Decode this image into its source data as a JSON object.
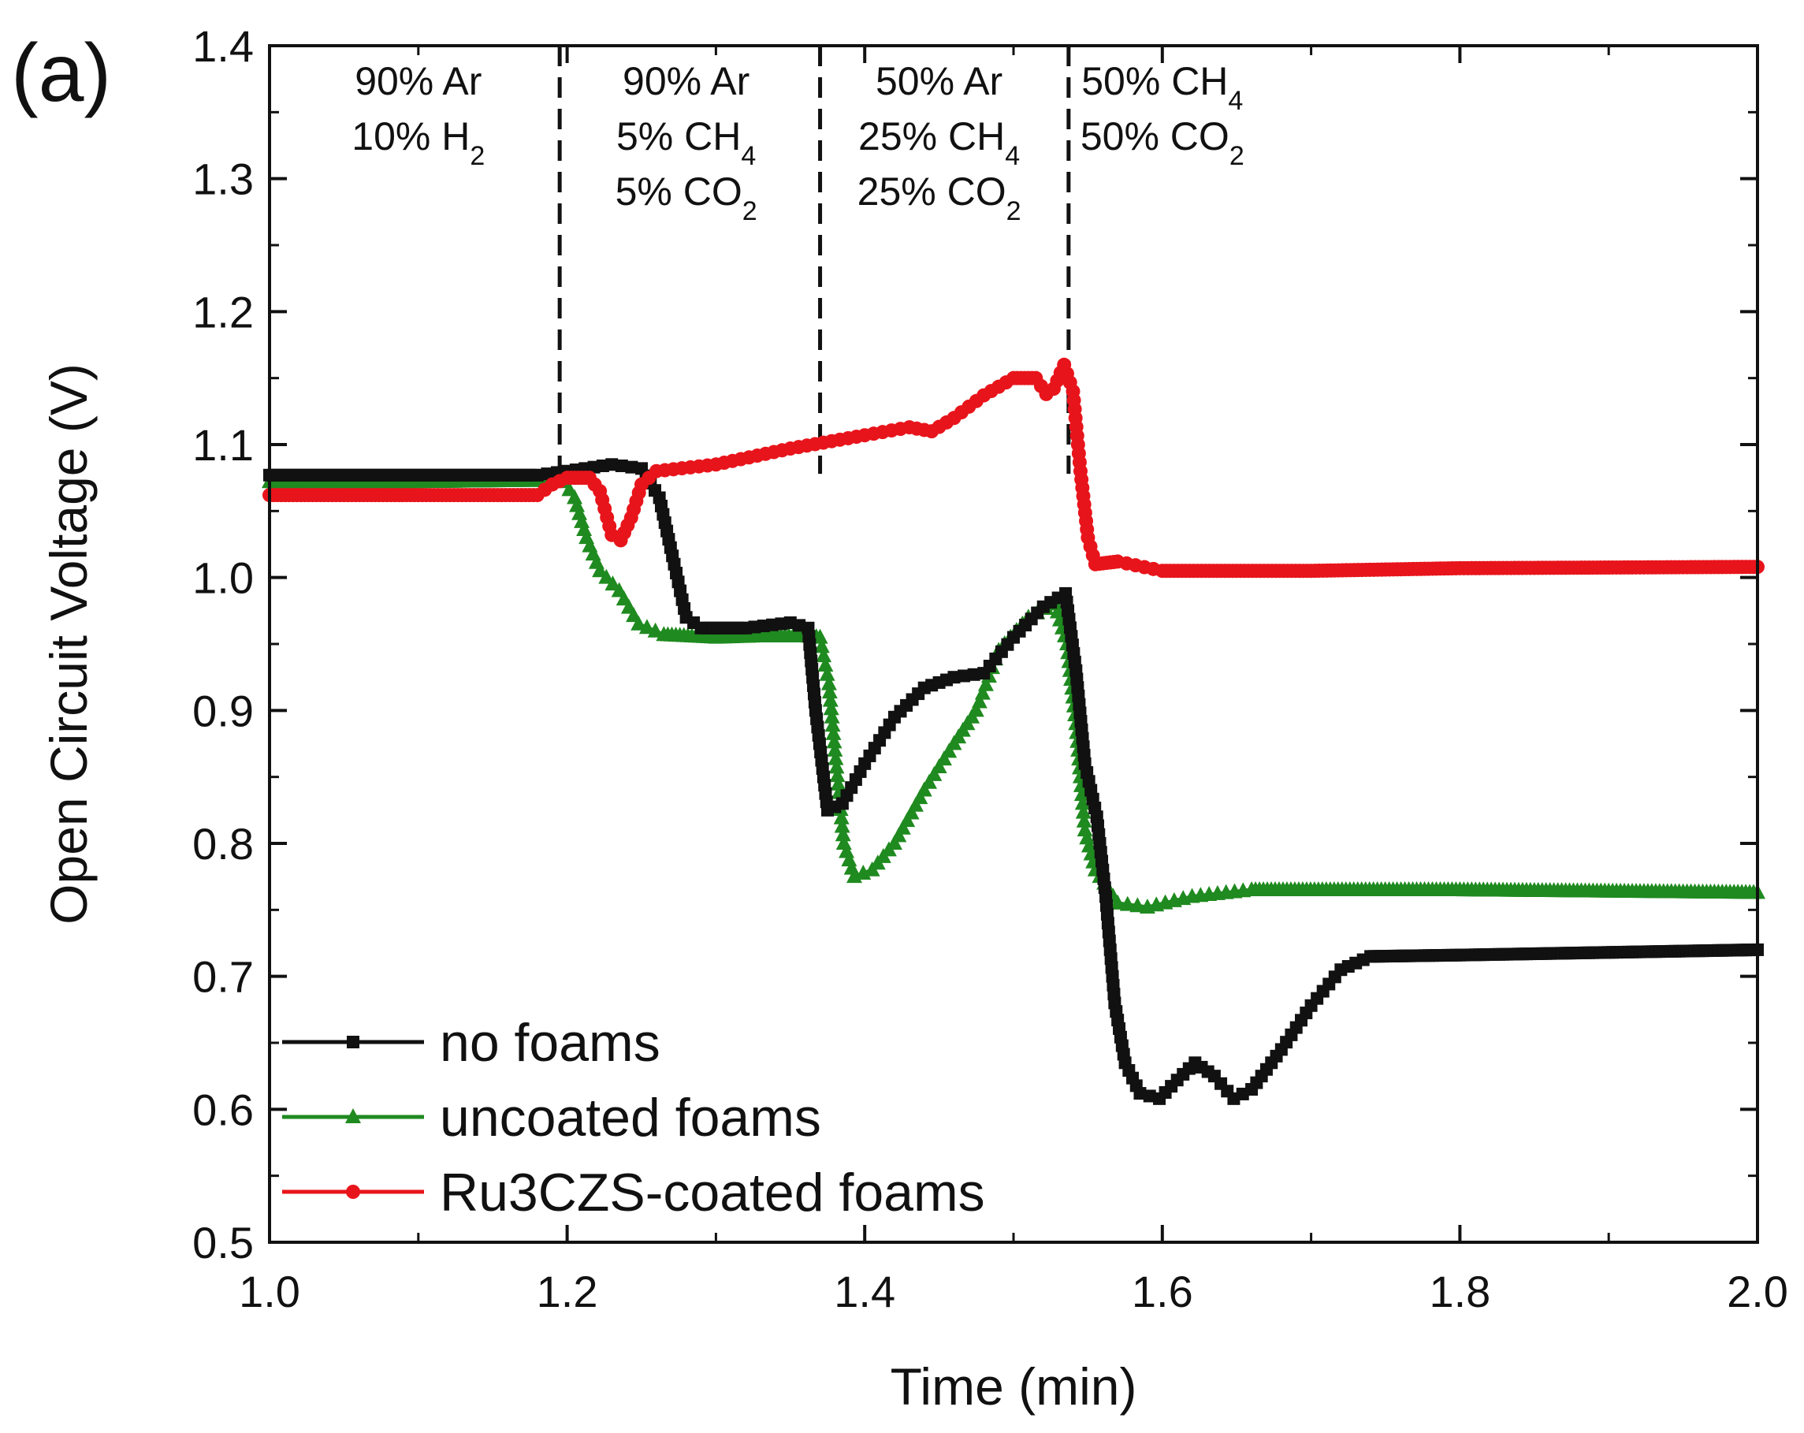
{
  "chart_data": {
    "type": "line",
    "panel_label": "(a)",
    "xlabel": "Time (min)",
    "ylabel": "Open Circuit Voltage (V)",
    "xlim": [
      1.0,
      2.0
    ],
    "ylim": [
      0.5,
      1.4
    ],
    "x_ticks": [
      1.0,
      1.2,
      1.4,
      1.6,
      1.8,
      2.0
    ],
    "x_tick_labels": [
      "1.0",
      "1.2",
      "1.4",
      "1.6",
      "1.8",
      "2.0"
    ],
    "y_ticks": [
      0.5,
      0.6,
      0.7,
      0.8,
      0.9,
      1.0,
      1.1,
      1.2,
      1.3,
      1.4
    ],
    "y_tick_labels": [
      "0.5",
      "0.6",
      "0.7",
      "0.8",
      "0.9",
      "1.0",
      "1.1",
      "1.2",
      "1.3",
      "1.4"
    ],
    "x_minor_step": 0.1,
    "y_minor_step": 0.05,
    "dividers": [
      1.195,
      1.37,
      1.537
    ],
    "regions": [
      {
        "x_center": 1.1,
        "lines": [
          {
            "text": "90% Ar"
          },
          {
            "text": "10% H",
            "sub": "2"
          }
        ]
      },
      {
        "x_center": 1.28,
        "lines": [
          {
            "text": "90% Ar"
          },
          {
            "text": "5% CH",
            "sub": "4"
          },
          {
            "text": "5% CO",
            "sub": "2"
          }
        ]
      },
      {
        "x_center": 1.45,
        "lines": [
          {
            "text": "50% Ar"
          },
          {
            "text": "25% CH",
            "sub": "4"
          },
          {
            "text": "25% CO",
            "sub": "2"
          }
        ]
      },
      {
        "x_center": 1.6,
        "lines": [
          {
            "text": "50% CH",
            "sub": "4"
          },
          {
            "text": "50% CO",
            "sub": "2"
          }
        ]
      }
    ],
    "legend_position": "bottom-left",
    "series": [
      {
        "name": "no foams",
        "color": "#111111",
        "marker": "square",
        "points": [
          [
            1.0,
            1.077
          ],
          [
            1.1,
            1.077
          ],
          [
            1.18,
            1.077
          ],
          [
            1.2,
            1.08
          ],
          [
            1.23,
            1.085
          ],
          [
            1.25,
            1.082
          ],
          [
            1.262,
            1.06
          ],
          [
            1.272,
            1.01
          ],
          [
            1.28,
            0.97
          ],
          [
            1.29,
            0.962
          ],
          [
            1.32,
            0.962
          ],
          [
            1.35,
            0.966
          ],
          [
            1.362,
            0.962
          ],
          [
            1.367,
            0.9
          ],
          [
            1.375,
            0.825
          ],
          [
            1.385,
            0.83
          ],
          [
            1.4,
            0.86
          ],
          [
            1.42,
            0.895
          ],
          [
            1.44,
            0.917
          ],
          [
            1.46,
            0.925
          ],
          [
            1.48,
            0.928
          ],
          [
            1.5,
            0.955
          ],
          [
            1.52,
            0.978
          ],
          [
            1.535,
            0.988
          ],
          [
            1.542,
            0.93
          ],
          [
            1.548,
            0.86
          ],
          [
            1.556,
            0.82
          ],
          [
            1.562,
            0.76
          ],
          [
            1.568,
            0.68
          ],
          [
            1.575,
            0.635
          ],
          [
            1.585,
            0.612
          ],
          [
            1.598,
            0.608
          ],
          [
            1.61,
            0.622
          ],
          [
            1.622,
            0.635
          ],
          [
            1.635,
            0.625
          ],
          [
            1.648,
            0.608
          ],
          [
            1.66,
            0.615
          ],
          [
            1.68,
            0.645
          ],
          [
            1.7,
            0.678
          ],
          [
            1.72,
            0.705
          ],
          [
            1.74,
            0.715
          ],
          [
            1.8,
            0.716
          ],
          [
            1.9,
            0.718
          ],
          [
            2.0,
            0.72
          ]
        ]
      },
      {
        "name": "uncoated foams",
        "color": "#1f8a1f",
        "marker": "triangle",
        "points": [
          [
            1.0,
            1.072
          ],
          [
            1.1,
            1.072
          ],
          [
            1.18,
            1.073
          ],
          [
            1.198,
            1.072
          ],
          [
            1.205,
            1.06
          ],
          [
            1.213,
            1.03
          ],
          [
            1.222,
            1.005
          ],
          [
            1.235,
            0.99
          ],
          [
            1.248,
            0.965
          ],
          [
            1.265,
            0.957
          ],
          [
            1.3,
            0.955
          ],
          [
            1.33,
            0.956
          ],
          [
            1.36,
            0.956
          ],
          [
            1.37,
            0.955
          ],
          [
            1.376,
            0.92
          ],
          [
            1.38,
            0.87
          ],
          [
            1.386,
            0.8
          ],
          [
            1.393,
            0.775
          ],
          [
            1.405,
            0.78
          ],
          [
            1.42,
            0.8
          ],
          [
            1.44,
            0.84
          ],
          [
            1.46,
            0.875
          ],
          [
            1.475,
            0.9
          ],
          [
            1.49,
            0.945
          ],
          [
            1.51,
            0.97
          ],
          [
            1.528,
            0.98
          ],
          [
            1.536,
            0.95
          ],
          [
            1.542,
            0.89
          ],
          [
            1.548,
            0.81
          ],
          [
            1.555,
            0.78
          ],
          [
            1.57,
            0.755
          ],
          [
            1.59,
            0.752
          ],
          [
            1.62,
            0.76
          ],
          [
            1.66,
            0.765
          ],
          [
            1.8,
            0.765
          ],
          [
            2.0,
            0.763
          ]
        ]
      },
      {
        "name": "Ru3CZS-coated foams",
        "color": "#e8141b",
        "marker": "circle",
        "points": [
          [
            1.0,
            1.062
          ],
          [
            1.1,
            1.062
          ],
          [
            1.18,
            1.062
          ],
          [
            1.19,
            1.07
          ],
          [
            1.2,
            1.075
          ],
          [
            1.215,
            1.075
          ],
          [
            1.222,
            1.065
          ],
          [
            1.23,
            1.032
          ],
          [
            1.236,
            1.028
          ],
          [
            1.243,
            1.045
          ],
          [
            1.25,
            1.07
          ],
          [
            1.26,
            1.08
          ],
          [
            1.3,
            1.085
          ],
          [
            1.35,
            1.097
          ],
          [
            1.4,
            1.107
          ],
          [
            1.43,
            1.113
          ],
          [
            1.445,
            1.11
          ],
          [
            1.46,
            1.12
          ],
          [
            1.48,
            1.137
          ],
          [
            1.5,
            1.15
          ],
          [
            1.515,
            1.15
          ],
          [
            1.522,
            1.138
          ],
          [
            1.527,
            1.142
          ],
          [
            1.534,
            1.16
          ],
          [
            1.54,
            1.14
          ],
          [
            1.545,
            1.08
          ],
          [
            1.55,
            1.03
          ],
          [
            1.555,
            1.01
          ],
          [
            1.57,
            1.012
          ],
          [
            1.6,
            1.005
          ],
          [
            1.7,
            1.005
          ],
          [
            1.8,
            1.007
          ],
          [
            2.0,
            1.008
          ]
        ]
      }
    ]
  }
}
